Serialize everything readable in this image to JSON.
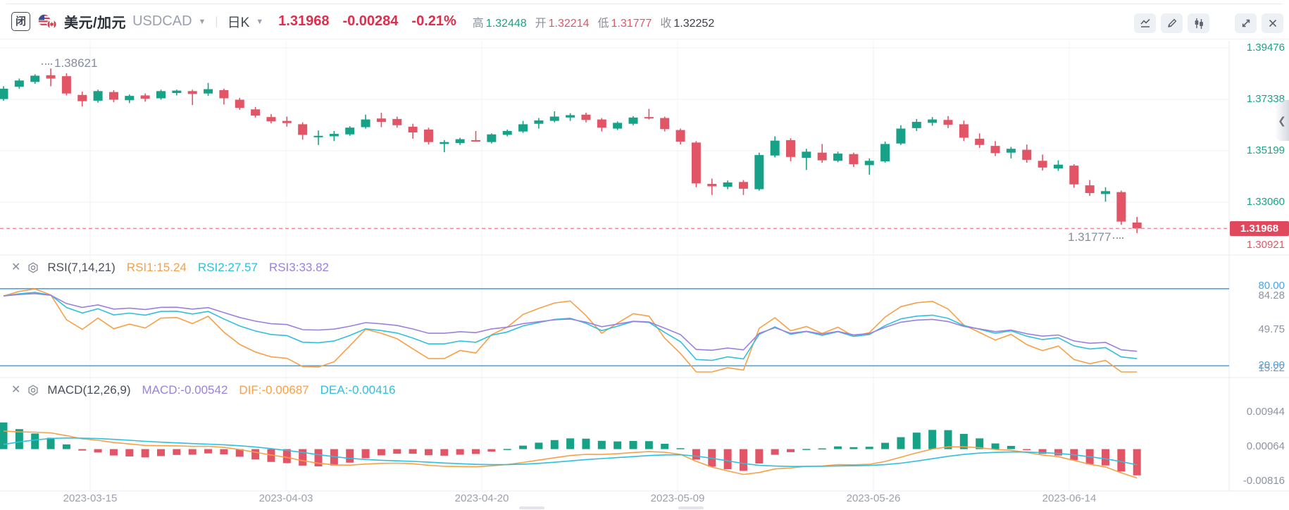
{
  "colors": {
    "up": "#17a288",
    "down": "#e25566",
    "accent_red": "#dd2e4e",
    "badge_red": "#e0485e",
    "dashed_line": "#ec8b96",
    "orange": "#f7a048",
    "cyan": "#2fc0dd",
    "purple": "#9b80e0",
    "band_blue": "#49a5e8",
    "axis_green": "#1ca189",
    "grid_v": "#f2f3f7",
    "grid_h": "#eef0f3",
    "divider": "#e9ebf0"
  },
  "header": {
    "market_status_badge": "闭",
    "pair_name": "美元/加元",
    "pair_code": "USDCAD",
    "interval": "日K",
    "price": "1.31968",
    "change": "-0.00284",
    "change_pct": "-0.21%",
    "high_label": "高",
    "high": "1.32448",
    "open_label": "开",
    "open": "1.32214",
    "low_label": "低",
    "low": "1.31777",
    "close_label": "收",
    "close": "1.32252",
    "toolbar_icons": [
      "line-chart",
      "draw-pencil",
      "candlestick",
      "fullscreen",
      "close"
    ]
  },
  "main_panel": {
    "axis_labels": [
      "1.39476",
      "1.37338",
      "1.35199",
      "1.33060"
    ],
    "current_price": "1.31968",
    "axis_below_current": "1.30921",
    "high_annotation": "1.38621",
    "low_annotation": "1.31777"
  },
  "rsi_panel": {
    "title": "RSI(7,14,21)",
    "rsi1": "RSI1:15.24",
    "rsi2": "RSI2:27.57",
    "rsi3": "RSI3:33.82",
    "band_top": "80.00",
    "band_bottom": "20.00",
    "axis_top": "84.28",
    "axis_mid": "49.75",
    "axis_bottom": "15.22"
  },
  "macd_panel": {
    "title": "MACD(12,26,9)",
    "macd": "MACD:-0.00542",
    "dif": "DIF:-0.00687",
    "dea": "DEA:-0.00416",
    "axis_top": "0.00944",
    "axis_mid": "0.00064",
    "axis_bottom": "-0.00816"
  },
  "x_axis": {
    "labels": [
      "2023-03-15",
      "2023-04-03",
      "2023-04-20",
      "2023-05-09",
      "2023-05-26",
      "2023-06-14"
    ]
  },
  "chart_data": {
    "type": "candlestick",
    "symbol": "USDCAD",
    "interval": "daily",
    "title": "美元/加元 USDCAD 日K",
    "x_tick_labels": [
      "2023-03-15",
      "2023-04-03",
      "2023-04-20",
      "2023-05-09",
      "2023-05-26",
      "2023-06-14"
    ],
    "price_axis_ticks": [
      1.39476,
      1.37338,
      1.35199,
      1.3306,
      1.30921
    ],
    "last_price": 1.31968,
    "change": -0.00284,
    "change_pct": -0.21,
    "day_high": 1.32448,
    "day_open": 1.32214,
    "day_low": 1.31777,
    "prev_close": 1.32252,
    "period_high": 1.38621,
    "period_low": 1.31777,
    "candles_ohlc": [
      [
        1.3735,
        1.3788,
        1.3728,
        1.3778
      ],
      [
        1.3786,
        1.382,
        1.3778,
        1.3812
      ],
      [
        1.3806,
        1.3838,
        1.3798,
        1.3832
      ],
      [
        1.3834,
        1.38621,
        1.3788,
        1.382
      ],
      [
        1.383,
        1.3842,
        1.375,
        1.3758
      ],
      [
        1.3752,
        1.3766,
        1.3704,
        1.3726
      ],
      [
        1.3728,
        1.3774,
        1.372,
        1.3768
      ],
      [
        1.3764,
        1.3772,
        1.3722,
        1.3732
      ],
      [
        1.373,
        1.3754,
        1.3718,
        1.3748
      ],
      [
        1.375,
        1.3758,
        1.3724,
        1.3736
      ],
      [
        1.3738,
        1.3774,
        1.3732,
        1.3768
      ],
      [
        1.376,
        1.3774,
        1.375,
        1.377
      ],
      [
        1.3768,
        1.3774,
        1.371,
        1.3756
      ],
      [
        1.3758,
        1.3802,
        1.3748,
        1.3776
      ],
      [
        1.3772,
        1.3778,
        1.3712,
        1.3738
      ],
      [
        1.3732,
        1.374,
        1.369,
        1.3698
      ],
      [
        1.3692,
        1.3702,
        1.3658,
        1.3666
      ],
      [
        1.366,
        1.3672,
        1.3634,
        1.3642
      ],
      [
        1.3644,
        1.3662,
        1.362,
        1.3635
      ],
      [
        1.363,
        1.3638,
        1.3566,
        1.3586
      ],
      [
        1.3576,
        1.3604,
        1.3544,
        1.3582
      ],
      [
        1.358,
        1.3602,
        1.356,
        1.359
      ],
      [
        1.3588,
        1.3622,
        1.3582,
        1.3616
      ],
      [
        1.3618,
        1.367,
        1.3612,
        1.365
      ],
      [
        1.3654,
        1.3678,
        1.3618,
        1.364
      ],
      [
        1.3652,
        1.3662,
        1.3616,
        1.3626
      ],
      [
        1.362,
        1.3632,
        1.357,
        1.3596
      ],
      [
        1.3608,
        1.3616,
        1.3546,
        1.3556
      ],
      [
        1.3548,
        1.3564,
        1.3514,
        1.3556
      ],
      [
        1.3552,
        1.3574,
        1.3544,
        1.3568
      ],
      [
        1.3564,
        1.3602,
        1.3558,
        1.356
      ],
      [
        1.3556,
        1.3592,
        1.355,
        1.3588
      ],
      [
        1.3586,
        1.3608,
        1.358,
        1.3602
      ],
      [
        1.36,
        1.3644,
        1.3594,
        1.363
      ],
      [
        1.3632,
        1.3656,
        1.3612,
        1.3646
      ],
      [
        1.3644,
        1.3684,
        1.3638,
        1.3662
      ],
      [
        1.3658,
        1.3676,
        1.3644,
        1.3668
      ],
      [
        1.367,
        1.3678,
        1.3638,
        1.3648
      ],
      [
        1.365,
        1.3656,
        1.36,
        1.3616
      ],
      [
        1.3612,
        1.3642,
        1.3606,
        1.3636
      ],
      [
        1.3632,
        1.3664,
        1.3626,
        1.3658
      ],
      [
        1.366,
        1.3694,
        1.365,
        1.3654
      ],
      [
        1.3656,
        1.3662,
        1.36,
        1.361
      ],
      [
        1.3606,
        1.3612,
        1.3546,
        1.3558
      ],
      [
        1.3554,
        1.356,
        1.3368,
        1.3384
      ],
      [
        1.3382,
        1.3404,
        1.3336,
        1.3372
      ],
      [
        1.337,
        1.3396,
        1.336,
        1.3388
      ],
      [
        1.339,
        1.3398,
        1.3336,
        1.3362
      ],
      [
        1.336,
        1.3512,
        1.3354,
        1.3502
      ],
      [
        1.35,
        1.358,
        1.3492,
        1.3562
      ],
      [
        1.3564,
        1.3572,
        1.3476,
        1.3494
      ],
      [
        1.349,
        1.3528,
        1.344,
        1.3516
      ],
      [
        1.3512,
        1.3548,
        1.347,
        1.348
      ],
      [
        1.3478,
        1.3516,
        1.3472,
        1.3508
      ],
      [
        1.3506,
        1.3512,
        1.3452,
        1.3464
      ],
      [
        1.346,
        1.3488,
        1.342,
        1.3478
      ],
      [
        1.3476,
        1.3558,
        1.347,
        1.3548
      ],
      [
        1.355,
        1.3626,
        1.3544,
        1.3612
      ],
      [
        1.3614,
        1.3652,
        1.3602,
        1.364
      ],
      [
        1.3636,
        1.366,
        1.3624,
        1.365
      ],
      [
        1.3648,
        1.3664,
        1.3614,
        1.3628
      ],
      [
        1.363,
        1.3645,
        1.356,
        1.3574
      ],
      [
        1.357,
        1.3592,
        1.3532,
        1.3544
      ],
      [
        1.354,
        1.356,
        1.3498,
        1.351
      ],
      [
        1.3512,
        1.3536,
        1.3488,
        1.3528
      ],
      [
        1.3524,
        1.3546,
        1.347,
        1.3482
      ],
      [
        1.3478,
        1.3504,
        1.3438,
        1.345
      ],
      [
        1.3446,
        1.348,
        1.3436,
        1.3462
      ],
      [
        1.3458,
        1.3464,
        1.3366,
        1.338
      ],
      [
        1.3376,
        1.3398,
        1.3332,
        1.3344
      ],
      [
        1.334,
        1.3368,
        1.3308,
        1.3352
      ],
      [
        1.3348,
        1.3354,
        1.3212,
        1.32252
      ],
      [
        1.32214,
        1.32448,
        1.31777,
        1.31968
      ]
    ],
    "indicators": {
      "rsi": {
        "params": [
          7,
          14,
          21
        ],
        "latest": [
          15.24,
          27.57,
          33.82
        ],
        "bands": [
          80,
          20
        ],
        "axis_ticks": [
          84.28,
          49.75,
          15.22
        ]
      },
      "macd": {
        "params": [
          12,
          26,
          9
        ],
        "latest": {
          "macd": -0.00542,
          "dif": -0.00687,
          "dea": -0.00416
        },
        "axis_ticks": [
          0.00944,
          0.00064,
          -0.00816
        ],
        "histogram_rule": "2*(DIF-DEA)"
      }
    }
  }
}
